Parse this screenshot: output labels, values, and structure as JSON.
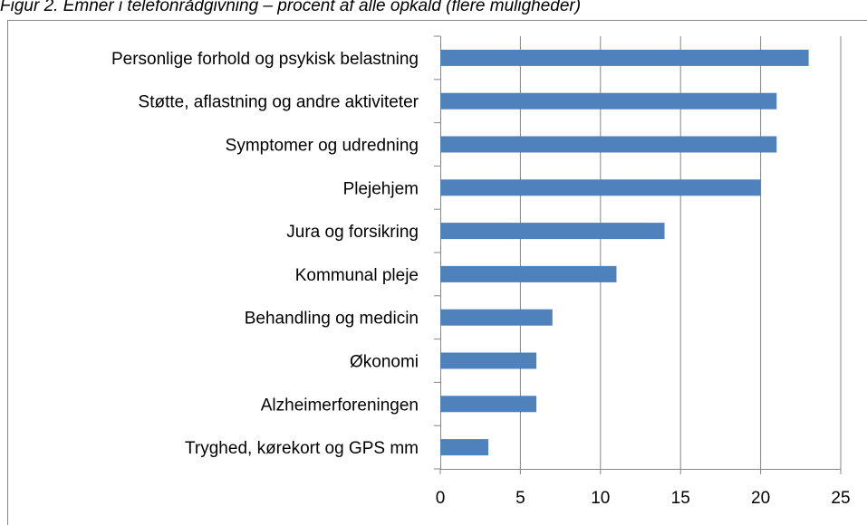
{
  "chart_data": {
    "type": "hbar",
    "title": "Figur 2. Emner i telefonrådgivning – procent af alle opkald (flere muligheder)",
    "categories": [
      "Personlige forhold og psykisk belastning",
      "Støtte, aflastning og andre aktiviteter",
      "Symptomer og udredning",
      "Plejehjem",
      "Jura og forsikring",
      "Kommunal pleje",
      "Behandling og medicin",
      "Økonomi",
      "Alzheimerforeningen",
      "Tryghed, kørekort og GPS mm"
    ],
    "values": [
      23,
      21,
      21,
      20,
      14,
      11,
      7,
      6,
      6,
      3
    ],
    "color": "#4f81bd",
    "xlim": [
      0,
      25
    ],
    "xticks": [
      0,
      5,
      10,
      15,
      20,
      25
    ],
    "grid": true
  }
}
